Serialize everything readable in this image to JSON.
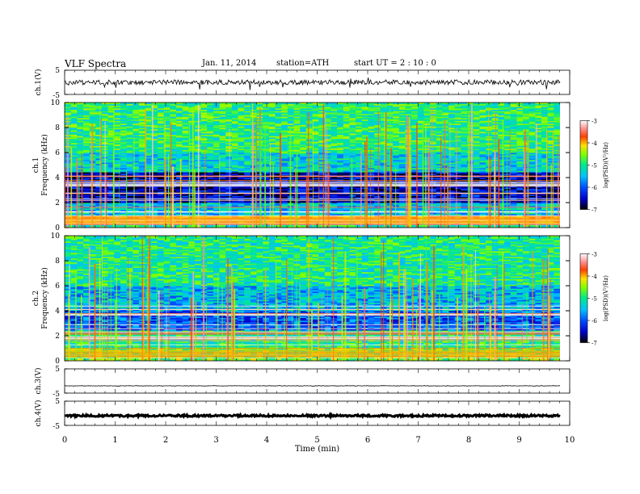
{
  "header": {
    "title": "VLF  Spectra",
    "date": "Jan. 11, 2014",
    "station": "station=ATH",
    "start": "start  UT  =   2 : 10 : 0"
  },
  "chart_data": [
    {
      "id": "ch1_waveform",
      "type": "line",
      "ylabel": "ch.1(V)",
      "ylim": [
        -5,
        5
      ],
      "yticks": [
        "5",
        "-5"
      ],
      "x_range_min": [
        0,
        9.8
      ],
      "description_values": {
        "baseline_V": 0,
        "typical_amplitude_V": 1.0,
        "spike_amplitude_V": 3.0
      }
    },
    {
      "id": "ch1_spectrogram",
      "type": "heatmap",
      "title_label": "ch.1",
      "ylabel": "Frequency  (kHz)",
      "ylim": [
        0,
        10
      ],
      "yticks": [
        "0",
        "2",
        "4",
        "6",
        "8",
        "10"
      ],
      "colorbar": {
        "label": "log(PSD)(V²/Hz)",
        "range": [
          -7,
          -3
        ],
        "ticks": [
          "-3",
          "-4",
          "-5",
          "-6",
          "-7"
        ]
      },
      "bands_kHz": [
        {
          "low": 0.0,
          "high": 0.3,
          "level": -5.0
        },
        {
          "low": 0.3,
          "high": 1.0,
          "level": -3.8
        },
        {
          "low": 1.0,
          "high": 2.0,
          "level": -5.4
        },
        {
          "low": 2.0,
          "high": 4.5,
          "level": -6.5
        },
        {
          "low": 4.5,
          "high": 6.0,
          "level": -5.3
        },
        {
          "low": 6.0,
          "high": 10.0,
          "level": -4.9
        }
      ]
    },
    {
      "id": "ch2_spectrogram",
      "type": "heatmap",
      "title_label": "ch.2",
      "ylabel": "Frequency  (kHz)",
      "ylim": [
        0,
        10
      ],
      "yticks": [
        "0",
        "2",
        "4",
        "6",
        "8",
        "10"
      ],
      "colorbar": {
        "label": "log(PSD)(V²/Hz)",
        "range": [
          -7,
          -3
        ],
        "ticks": [
          "-3",
          "-4",
          "-5",
          "-6",
          "-7"
        ]
      },
      "bands_kHz": [
        {
          "low": 0.0,
          "high": 1.0,
          "level": -4.6
        },
        {
          "low": 1.0,
          "high": 2.5,
          "level": -5.0
        },
        {
          "low": 2.5,
          "high": 4.0,
          "level": -6.0
        },
        {
          "low": 4.0,
          "high": 6.0,
          "level": -5.5
        },
        {
          "low": 6.0,
          "high": 10.0,
          "level": -5.0
        }
      ]
    },
    {
      "id": "ch3_waveform",
      "type": "line",
      "ylabel": "ch.3(V)",
      "ylim": [
        -5,
        5
      ],
      "yticks": [
        "5",
        "-5"
      ],
      "description_values": {
        "baseline_V": -2.0,
        "typical_amplitude_V": 0.1
      }
    },
    {
      "id": "ch4_waveform",
      "type": "line",
      "ylabel": "ch.4(V)",
      "ylim": [
        -5,
        5
      ],
      "yticks": [
        "5",
        "-5"
      ],
      "description_values": {
        "baseline_V": -1.0,
        "typical_amplitude_V": 0.4
      }
    }
  ],
  "xaxis": {
    "label": "Time  (min)",
    "xlim": [
      0,
      10
    ],
    "ticks": [
      "0",
      "1",
      "2",
      "3",
      "4",
      "5",
      "6",
      "7",
      "8",
      "9",
      "10"
    ]
  }
}
